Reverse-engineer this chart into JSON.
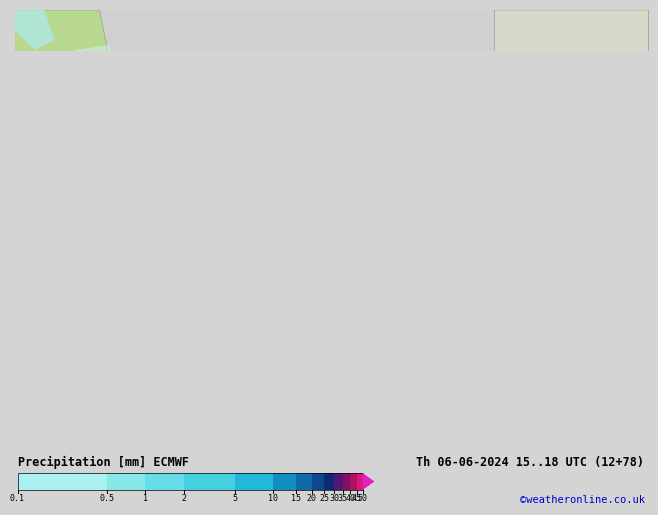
{
  "title_left": "Precipitation [mm] ECMWF",
  "title_right": "Th 06-06-2024 15..18 UTC (12+78)",
  "credit": "©weatheronline.co.uk",
  "colorbar_labels": [
    "0.1",
    "0.5",
    "1",
    "2",
    "5",
    "10",
    "15",
    "20",
    "25",
    "30",
    "35",
    "40",
    "45",
    "50"
  ],
  "colorbar_values": [
    0.1,
    0.5,
    1,
    2,
    5,
    10,
    15,
    20,
    25,
    30,
    35,
    40,
    45,
    50
  ],
  "colorbar_colors": [
    "#aaf0f0",
    "#88e8e8",
    "#66dde8",
    "#44d0e0",
    "#22b8d8",
    "#1190c0",
    "#1168a8",
    "#104890",
    "#102878",
    "#501870",
    "#801068",
    "#b01060",
    "#d81878",
    "#f030c0"
  ],
  "bg_color": "#d4d4d4",
  "fig_width": 6.34,
  "fig_height": 4.9
}
